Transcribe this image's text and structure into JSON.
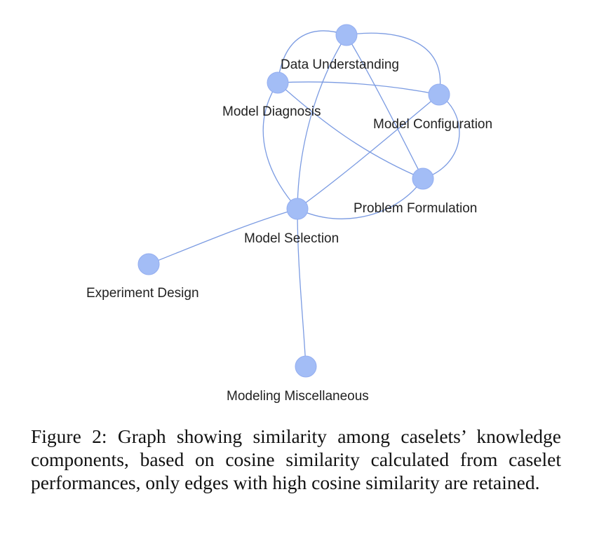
{
  "graph": {
    "nodes": [
      {
        "id": "du",
        "label": "Data Understanding"
      },
      {
        "id": "md",
        "label": "Model Diagnosis"
      },
      {
        "id": "mc",
        "label": "Model Configuration"
      },
      {
        "id": "pf",
        "label": "Problem Formulation"
      },
      {
        "id": "ms",
        "label": "Model Selection"
      },
      {
        "id": "ed",
        "label": "Experiment Design"
      },
      {
        "id": "mm",
        "label": "Modeling Miscellaneous"
      }
    ],
    "edges": [
      {
        "source": "du",
        "target": "md"
      },
      {
        "source": "du",
        "target": "mc"
      },
      {
        "source": "du",
        "target": "ms"
      },
      {
        "source": "du",
        "target": "pf"
      },
      {
        "source": "md",
        "target": "mc"
      },
      {
        "source": "md",
        "target": "pf"
      },
      {
        "source": "md",
        "target": "ms"
      },
      {
        "source": "mc",
        "target": "ms"
      },
      {
        "source": "mc",
        "target": "pf"
      },
      {
        "source": "pf",
        "target": "ms"
      },
      {
        "source": "ms",
        "target": "ed"
      },
      {
        "source": "ms",
        "target": "mm"
      }
    ],
    "colors": {
      "node": "#a3bdf6",
      "edge": "#7b9be2"
    }
  },
  "caption": "Figure 2: Graph showing similarity among caselets’ knowledge components, based on cosine similarity calculated from caselet performances, only edges with high cosine similarity are retained."
}
